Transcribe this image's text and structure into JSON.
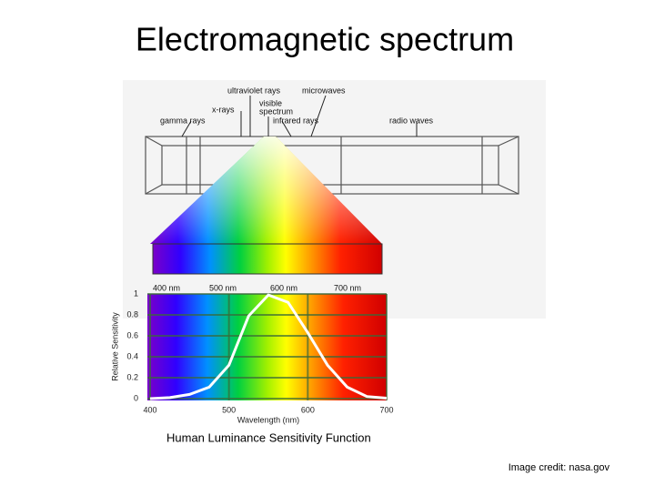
{
  "title": "Electromagnetic spectrum",
  "spectrum_diagram": {
    "labels": [
      "ultraviolet rays",
      "microwaves",
      "x-rays",
      "visible",
      "spectrum",
      "gamma rays",
      "infrared rays",
      "radio waves"
    ],
    "scale_labels": [
      "400 nm",
      "500 nm",
      "600 nm",
      "700 nm"
    ]
  },
  "chart_data": {
    "type": "line",
    "x_label": "Wavelength (nm)",
    "y_label": "Relative Sensitivity",
    "x": [
      400,
      425,
      450,
      475,
      500,
      525,
      550,
      575,
      600,
      625,
      650,
      675,
      700
    ],
    "series": [
      {
        "name": "Human Luminance Sensitivity",
        "color": "#ffffff",
        "values": [
          0,
          0.01,
          0.04,
          0.11,
          0.32,
          0.79,
          0.99,
          0.92,
          0.63,
          0.32,
          0.11,
          0.02,
          0.004
        ]
      }
    ],
    "xlim": [
      400,
      700
    ],
    "ylim": [
      0,
      1
    ],
    "xticks": [
      400,
      500,
      600,
      700
    ],
    "yticks": [
      0,
      0.2,
      0.4,
      0.6,
      0.8,
      1
    ],
    "grid": true
  },
  "caption": "Human Luminance Sensitivity Function",
  "credit": "Image credit: nasa.gov"
}
